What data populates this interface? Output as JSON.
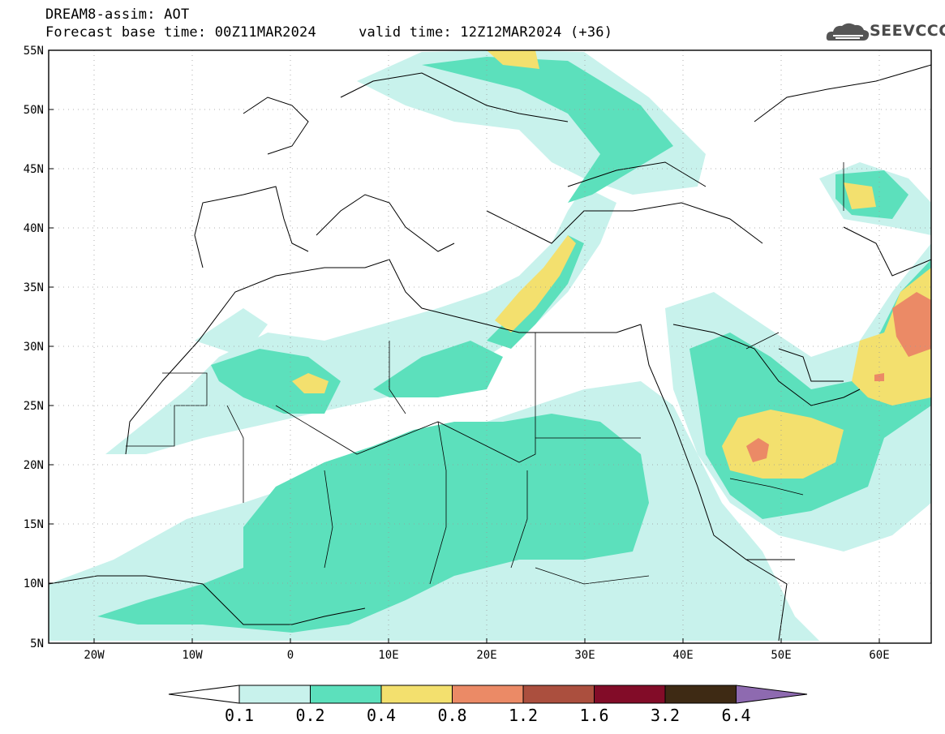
{
  "header": {
    "title_line1": "DREAM8-assim: AOT",
    "title_line2": "Forecast base time: 00Z11MAR2024     valid time: 12Z12MAR2024 (+36)"
  },
  "logo": {
    "text": "SEEVCCC",
    "icon": "cloud-logo-icon"
  },
  "axes": {
    "lon_labels": [
      "20W",
      "10W",
      "0",
      "10E",
      "20E",
      "30E",
      "40E",
      "50E",
      "60E"
    ],
    "lat_labels": [
      "55N",
      "50N",
      "45N",
      "40N",
      "35N",
      "30N",
      "25N",
      "20N",
      "15N",
      "10N",
      "5N"
    ]
  },
  "colorbar": {
    "labels": [
      "0.1",
      "0.2",
      "0.4",
      "0.8",
      "1.2",
      "1.6",
      "3.2",
      "6.4"
    ],
    "colors": [
      "#c8f2ec",
      "#5ce0bc",
      "#f3e06e",
      "#eb8a66",
      "#ab4f3e",
      "#820c28",
      "#3e2a14",
      "#8e6ab0"
    ]
  },
  "chart_data": {
    "type": "heatmap",
    "title": "DREAM8-assim: AOT",
    "variable": "AOT",
    "xlim": [
      -25,
      65
    ],
    "ylim": [
      5,
      55
    ],
    "x_ticks": [
      -20,
      -10,
      0,
      10,
      20,
      30,
      40,
      50,
      60
    ],
    "y_ticks": [
      55,
      50,
      45,
      40,
      35,
      30,
      25,
      20,
      15,
      10,
      5
    ],
    "levels": [
      0.1,
      0.2,
      0.4,
      0.8,
      1.2,
      1.6,
      3.2,
      6.4
    ]
  }
}
